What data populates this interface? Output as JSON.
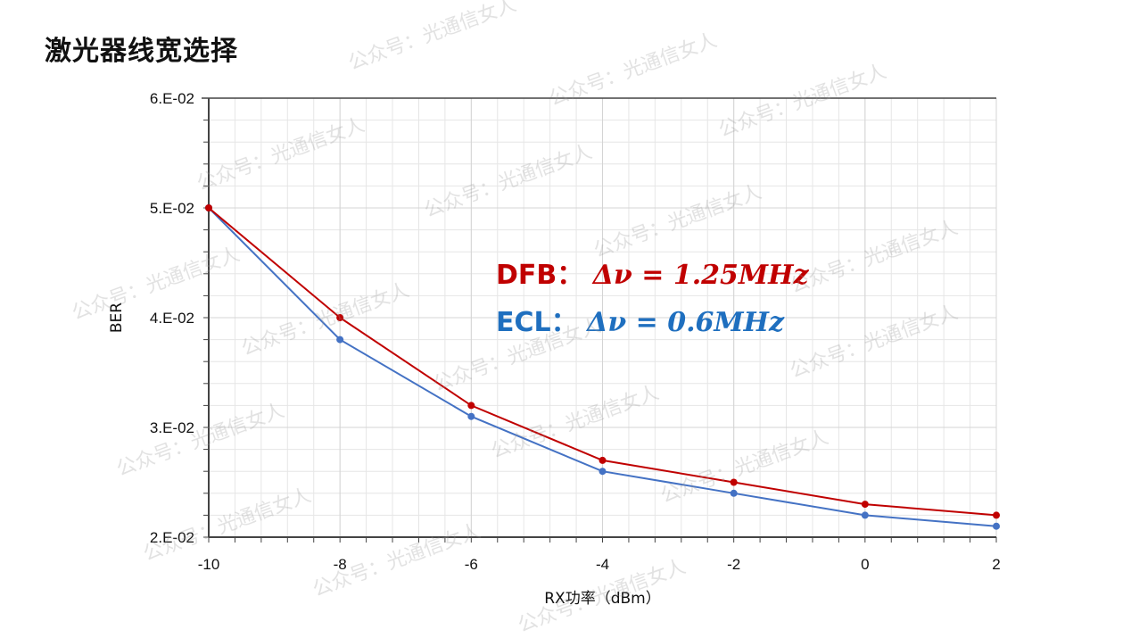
{
  "title": "激光器线宽选择",
  "watermark": "公众号：光通信女人",
  "chart_data": {
    "type": "line",
    "title": "激光器线宽选择",
    "xlabel": "RX功率（dBm）",
    "ylabel": "BER",
    "xlim": [
      -10,
      2
    ],
    "ylim": [
      0.02,
      0.06
    ],
    "x_ticks": [
      -10,
      -8,
      -6,
      -4,
      -2,
      0,
      2
    ],
    "x_tick_labels": [
      "-10",
      "-8",
      "-6",
      "-4",
      "-2",
      "0",
      "2"
    ],
    "y_ticks": [
      0.02,
      0.03,
      0.04,
      0.05,
      0.06
    ],
    "y_tick_labels": [
      "2.E-02",
      "3.E-02",
      "4.E-02",
      "5.E-02",
      "6.E-02"
    ],
    "grid": true,
    "x": [
      -10,
      -8,
      -6,
      -4,
      -2,
      0,
      2
    ],
    "series": [
      {
        "name": "DFB",
        "color": "#C00000",
        "values": [
          0.05,
          0.04,
          0.032,
          0.027,
          0.025,
          0.023,
          0.022
        ]
      },
      {
        "name": "ECL",
        "color": "#4472C4",
        "values": [
          0.05,
          0.038,
          0.031,
          0.026,
          0.024,
          0.022,
          0.021
        ]
      }
    ],
    "annotations": [
      {
        "label": "DFB：",
        "formula": "Δν = 1.25MHz",
        "color": "#C00000"
      },
      {
        "label": "ECL：",
        "formula": "Δν = 0.6MHz",
        "color": "#1F6FBF"
      }
    ]
  }
}
